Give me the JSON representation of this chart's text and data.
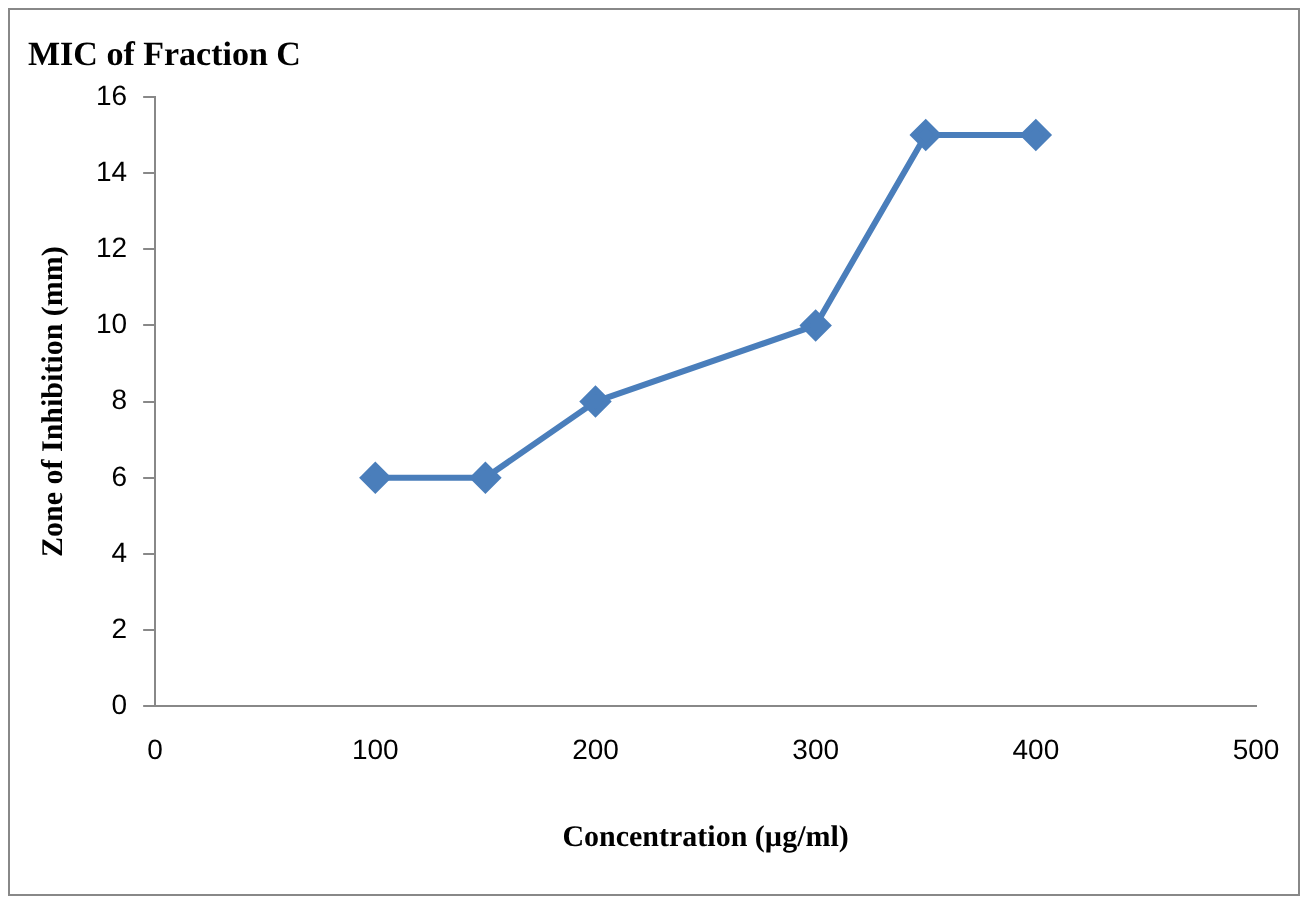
{
  "chart_data": {
    "type": "line",
    "title": "MIC of Fraction C",
    "xlabel": "Concentration (µg/ml)",
    "ylabel": "Zone of Inhibition (mm)",
    "x": [
      100,
      150,
      200,
      300,
      350,
      400
    ],
    "series": [
      {
        "color": "#4a7ebb",
        "values": [
          6,
          6,
          8,
          10,
          15,
          15
        ]
      }
    ],
    "xlim": [
      0,
      500
    ],
    "xticks": [
      0,
      100,
      200,
      300,
      400,
      500
    ],
    "ylim": [
      0,
      16
    ],
    "yticks": [
      0,
      2,
      4,
      6,
      8,
      10,
      12,
      14,
      16
    ],
    "grid": false,
    "legend": false,
    "marker": "diamond",
    "line_style": "solid"
  }
}
